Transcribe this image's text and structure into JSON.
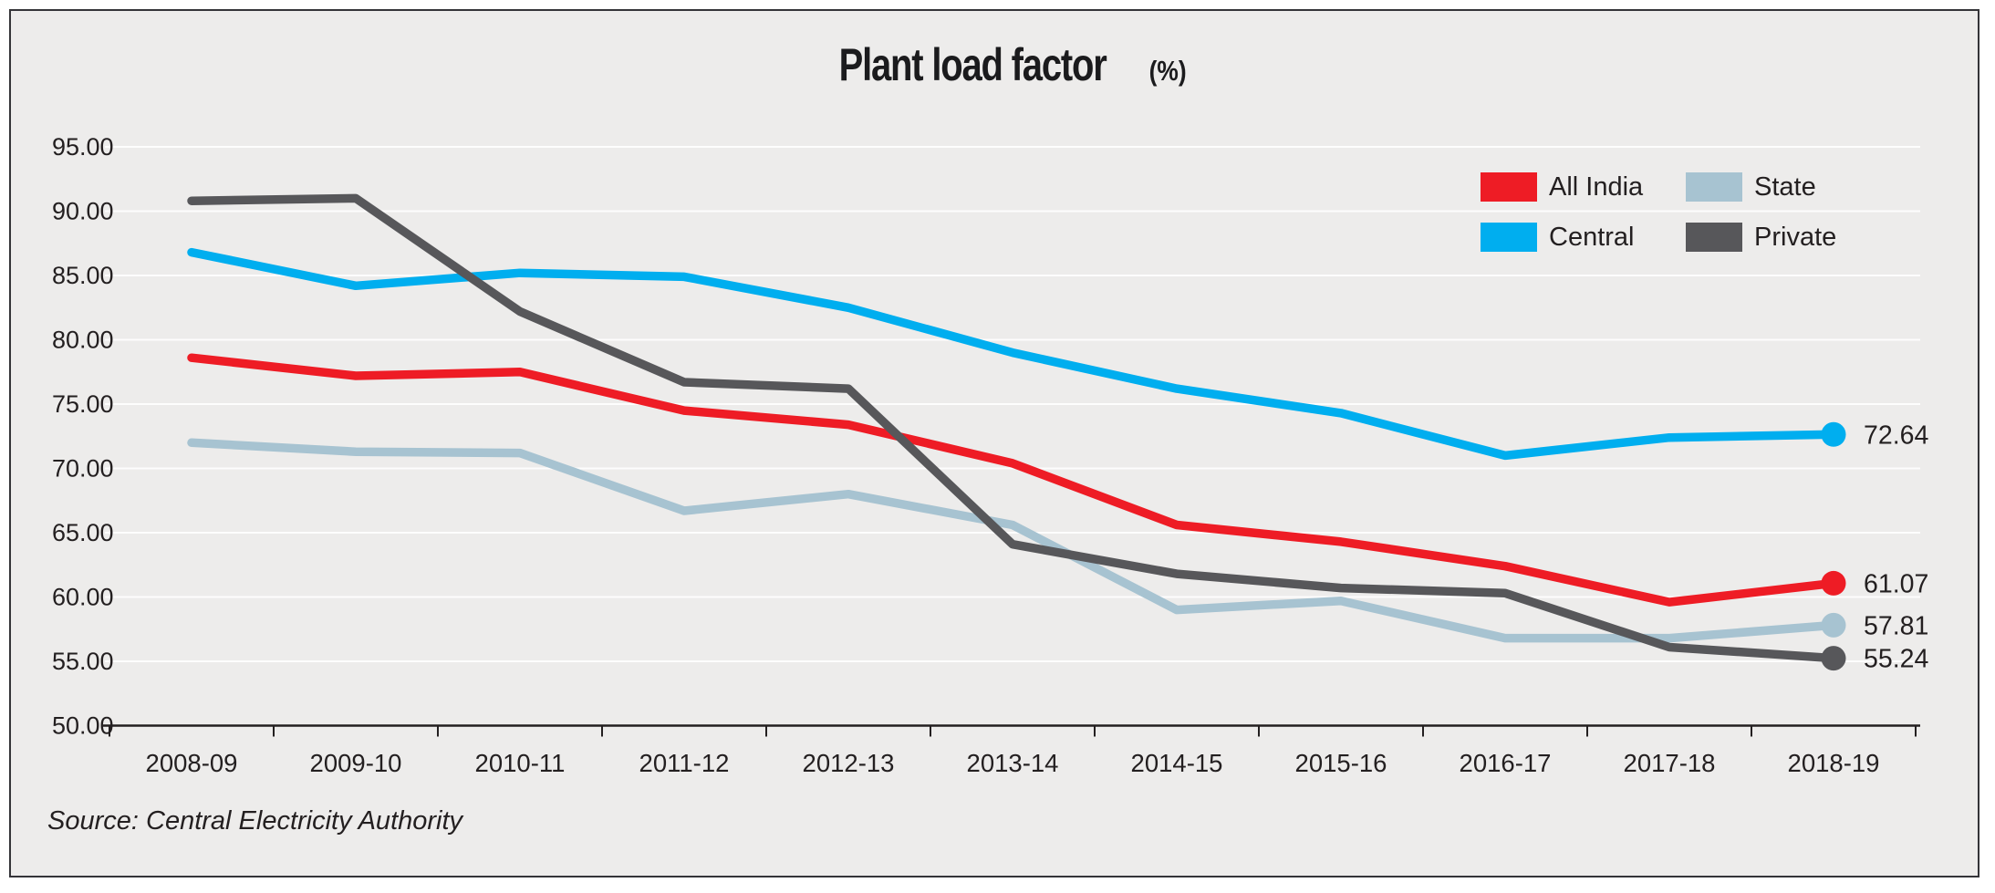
{
  "title": {
    "main": "Plant load factor",
    "unit": "(%)"
  },
  "source": {
    "text": "Source: Central Electricity Authority"
  },
  "colors": {
    "background": "#edeceb",
    "frame_border": "#343438",
    "gridline": "#ffffff",
    "axis_text": "#231f20",
    "all_india": "#ee1c25",
    "central": "#00aeef",
    "state": "#a7c3d1",
    "private": "#57575a"
  },
  "legend": {
    "items": [
      {
        "label": "All India",
        "color": "#ee1c25"
      },
      {
        "label": "State",
        "color": "#a7c3d1"
      },
      {
        "label": "Central",
        "color": "#00aeef"
      },
      {
        "label": "Private",
        "color": "#57575a"
      }
    ]
  },
  "chart_data": {
    "type": "line",
    "title": "Plant load factor (%)",
    "xlabel": "",
    "ylabel": "",
    "ylim": [
      50,
      95
    ],
    "ytick_step": 5,
    "ytick_labels": [
      "95.00",
      "90.00",
      "85.00",
      "80.00",
      "75.00",
      "70.00",
      "65.00",
      "60.00",
      "55.00",
      "50.00"
    ],
    "grid": true,
    "legend_position": "top-right",
    "categories": [
      "2008-09",
      "2009-10",
      "2010-11",
      "2011-12",
      "2012-13",
      "2013-14",
      "2014-15",
      "2015-16",
      "2016-17",
      "2017-18",
      "2018-19"
    ],
    "series": [
      {
        "name": "All India",
        "color": "#ee1c25",
        "values": [
          78.6,
          77.2,
          77.5,
          74.5,
          73.4,
          70.4,
          65.6,
          64.3,
          62.4,
          59.6,
          61.07
        ],
        "end_label": "61.07"
      },
      {
        "name": "Central",
        "color": "#00aeef",
        "values": [
          86.8,
          84.2,
          85.2,
          84.9,
          82.5,
          79.0,
          76.2,
          74.3,
          71.0,
          72.4,
          72.64
        ],
        "end_label": "72.64"
      },
      {
        "name": "State",
        "color": "#a7c3d1",
        "values": [
          72.0,
          71.3,
          71.2,
          66.7,
          68.0,
          65.6,
          59.0,
          59.7,
          56.8,
          56.8,
          57.81
        ],
        "end_label": "57.81"
      },
      {
        "name": "Private",
        "color": "#57575a",
        "values": [
          90.8,
          91.0,
          82.2,
          76.7,
          76.2,
          64.1,
          61.8,
          60.7,
          60.3,
          56.1,
          55.24
        ],
        "end_label": "55.24"
      }
    ]
  }
}
